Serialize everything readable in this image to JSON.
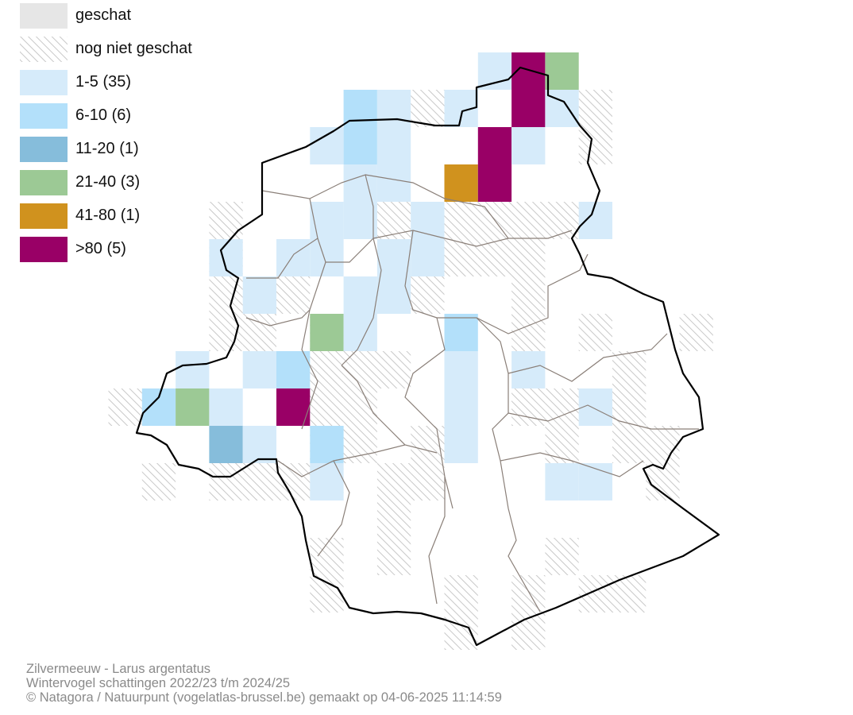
{
  "legend": {
    "items": [
      {
        "label": "geschat",
        "color": "#e6e6e6",
        "pattern": "solid"
      },
      {
        "label": "nog niet geschat",
        "color": "#cccccc",
        "pattern": "hatch"
      },
      {
        "label": "1-5 (35)",
        "color": "#d6ebfa",
        "pattern": "solid"
      },
      {
        "label": "6-10 (6)",
        "color": "#b3e0fa",
        "pattern": "solid"
      },
      {
        "label": "11-20 (1)",
        "color": "#86bddb",
        "pattern": "solid"
      },
      {
        "label": "21-40 (3)",
        "color": "#9cc995",
        "pattern": "solid"
      },
      {
        "label": "41-80 (1)",
        "color": "#d0921e",
        "pattern": "solid"
      },
      {
        "label": ">80 (5)",
        "color": "#990066",
        "pattern": "solid"
      }
    ]
  },
  "caption": {
    "line1": "Zilvermeeuw - Larus argentatus",
    "line2": "Wintervogel schattingen 2022/23 t/m 2024/25",
    "line3": "© Natagora / Natuurpunt (vogelatlas-brussel.be) gemaakt op 04-06-2025 11:14:59"
  },
  "colors": {
    "border": "#000000",
    "municipality_lines": "#8a7f78",
    "hatch": "#c8c8c8"
  }
}
